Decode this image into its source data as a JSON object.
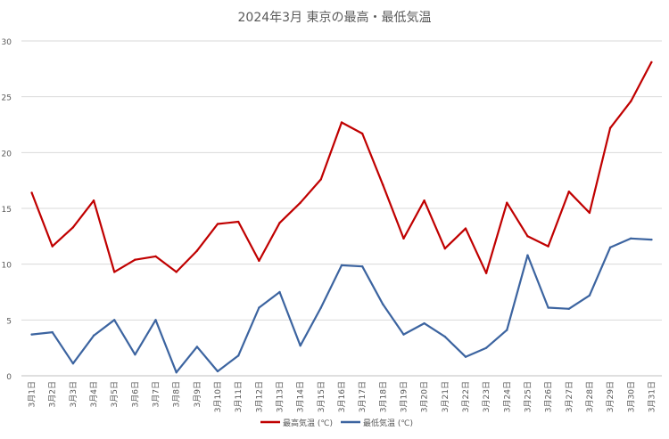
{
  "chart_data": {
    "type": "line",
    "title": "2024年3月 東京の最高・最低気温",
    "xlabel": "",
    "ylabel": "",
    "ylim": [
      0,
      30
    ],
    "yticks": [
      "0",
      "5",
      "10",
      "15",
      "20",
      "25",
      "30"
    ],
    "grid": true,
    "legend_position": "bottom",
    "categories": [
      "3月1日",
      "3月2日",
      "3月3日",
      "3月4日",
      "3月5日",
      "3月6日",
      "3月7日",
      "3月8日",
      "3月9日",
      "3月10日",
      "3月11日",
      "3月12日",
      "3月13日",
      "3月14日",
      "3月15日",
      "3月16日",
      "3月17日",
      "3月18日",
      "3月19日",
      "3月20日",
      "3月21日",
      "3月22日",
      "3月23日",
      "3月24日",
      "3月25日",
      "3月26日",
      "3月27日",
      "3月28日",
      "3月29日",
      "3月30日",
      "3月31日"
    ],
    "series": [
      {
        "name": "最高気温 (℃)",
        "color": "#c00000",
        "values": [
          16.4,
          11.6,
          13.3,
          15.7,
          9.3,
          10.4,
          10.7,
          9.3,
          11.2,
          13.6,
          13.8,
          10.3,
          13.7,
          15.5,
          17.6,
          22.7,
          21.7,
          17.1,
          12.3,
          15.7,
          11.4,
          13.2,
          9.2,
          15.5,
          12.5,
          11.6,
          16.5,
          14.6,
          22.2,
          24.6,
          28.1
        ]
      },
      {
        "name": "最低気温 (℃)",
        "color": "#3c64a0",
        "values": [
          3.7,
          3.9,
          1.1,
          3.6,
          5.0,
          1.9,
          5.0,
          0.3,
          2.6,
          0.4,
          1.8,
          6.1,
          7.5,
          2.7,
          6.1,
          9.9,
          9.8,
          6.4,
          3.7,
          4.7,
          3.5,
          1.7,
          2.5,
          4.1,
          10.8,
          6.1,
          6.0,
          7.2,
          11.5,
          12.3,
          12.2
        ]
      }
    ]
  }
}
